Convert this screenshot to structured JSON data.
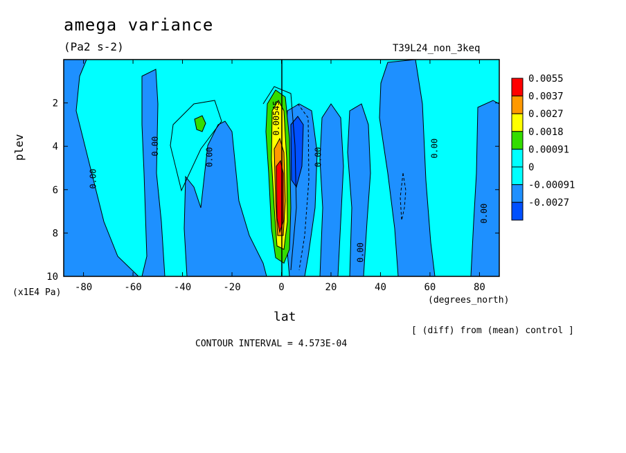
{
  "chart_data": {
    "type": "heatmap",
    "title": "amega variance",
    "units": "(Pa2 s-2)",
    "run_label": "T39L24_non_3keq",
    "xlabel": "lat",
    "x_units_label": "(degrees_north)",
    "ylabel": "plev",
    "y_units_label": "(x1E4 Pa)",
    "note": "[ (diff) from (mean) control ]",
    "contour_interval": "CONTOUR INTERVAL = 4.573E-04",
    "xlim": [
      -88,
      88
    ],
    "ylim": [
      0,
      10
    ],
    "y_inverted": true,
    "x_ticks": [
      "-80",
      "-60",
      "-40",
      "-20",
      "0",
      "20",
      "40",
      "60",
      "80"
    ],
    "x_tick_values": [
      -80,
      -60,
      -40,
      -20,
      0,
      20,
      40,
      60,
      80
    ],
    "y_ticks": [
      "2",
      "4",
      "6",
      "8",
      "10"
    ],
    "y_tick_values": [
      2,
      4,
      6,
      8,
      10
    ],
    "colorbar": {
      "labels": [
        "0.0055",
        "0.0037",
        "0.0027",
        "0.0018",
        "0.00091",
        "0",
        "-0.00091",
        "-0.0027"
      ],
      "colors": [
        "#ff0000",
        "#ff9900",
        "#ffff00",
        "#33dd00",
        "#00ffff",
        "#00ffff",
        "#1e90ff",
        "#0050ff"
      ]
    },
    "contour_labels": [
      {
        "text": "0.00",
        "lat": -75,
        "plev": 5.5
      },
      {
        "text": "0.00",
        "lat": -50,
        "plev": 4.0
      },
      {
        "text": "0.00",
        "lat": -28,
        "plev": 4.5
      },
      {
        "text": "0.00",
        "lat": 16,
        "plev": 4.5
      },
      {
        "text": "0.00",
        "lat": 33,
        "plev": 8.9
      },
      {
        "text": "0.00",
        "lat": 63,
        "plev": 4.1
      },
      {
        "text": "0.00",
        "lat": 83,
        "plev": 7.1
      },
      {
        "text": "0.00545",
        "lat": -1,
        "plev": 2.7
      }
    ],
    "regions": [
      {
        "level": "0",
        "color": "#00ffff"
      },
      {
        "level": "-0.00091",
        "color": "#1e90ff"
      },
      {
        "level": "0.00091",
        "color": "#33dd00"
      },
      {
        "level": "0.0018",
        "color": "#ffff00"
      },
      {
        "level": "0.0027",
        "color": "#ff9900"
      },
      {
        "level": "0.0055",
        "color": "#ff0000"
      },
      {
        "level": "-0.0027",
        "color": "#0050ff"
      }
    ]
  }
}
